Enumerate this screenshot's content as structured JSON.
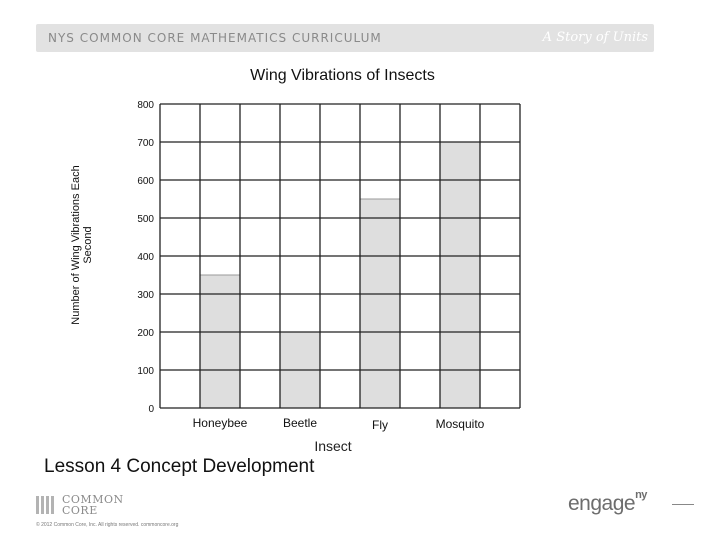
{
  "header": {
    "curriculum": "NYS COMMON CORE MATHEMATICS CURRICULUM",
    "series": "A Story of Units"
  },
  "chart_data": {
    "type": "bar",
    "title": "Wing Vibrations of Insects",
    "xlabel": "Insect",
    "ylabel": "Number of Wing Vibrations Each Second",
    "categories": [
      "Honeybee",
      "Beetle",
      "Fly",
      "Mosquito"
    ],
    "values": [
      350,
      200,
      550,
      700
    ],
    "ylim": [
      0,
      800
    ],
    "yticks": [
      "0",
      "100",
      "200",
      "300",
      "400",
      "500",
      "600",
      "700",
      "800"
    ],
    "grid": true,
    "bar_color": "#dedede",
    "grid_color": "#222222"
  },
  "footer": {
    "lesson": "Lesson 4 Concept Development",
    "logo_line1": "COMMON",
    "logo_line2": "CORE",
    "copyright": "© 2012 Common Core, Inc. All rights reserved. commoncore.org",
    "engage": "engage",
    "engage_sup": "ny"
  }
}
